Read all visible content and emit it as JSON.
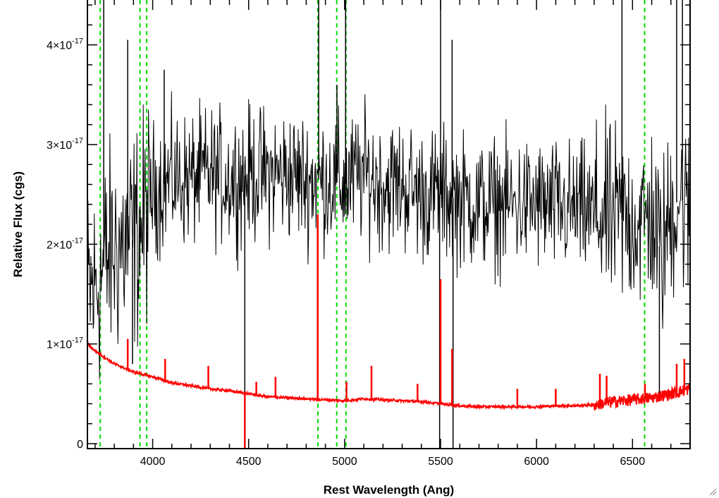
{
  "chart_data": {
    "type": "line",
    "xlabel": "Rest Wavelength (Ang)",
    "ylabel": "Relative Flux (cgs)",
    "xlim": [
      3660,
      6800
    ],
    "ylim": [
      -5e-19,
      4.45e-17
    ],
    "x_ticks": [
      {
        "value": 4000,
        "label": "4000"
      },
      {
        "value": 4500,
        "label": "4500"
      },
      {
        "value": 5000,
        "label": "5000"
      },
      {
        "value": 5500,
        "label": "5500"
      },
      {
        "value": 6000,
        "label": "6000"
      },
      {
        "value": 6500,
        "label": "6500"
      }
    ],
    "y_ticks": [
      {
        "value": 0,
        "mantissa": "0",
        "exponent": ""
      },
      {
        "value": 1e-17,
        "mantissa": "1×10",
        "exponent": "-17"
      },
      {
        "value": 2e-17,
        "mantissa": "2×10",
        "exponent": "-17"
      },
      {
        "value": 3e-17,
        "mantissa": "3×10",
        "exponent": "-17"
      },
      {
        "value": 4e-17,
        "mantissa": "4×10",
        "exponent": "-17"
      }
    ],
    "grid": false,
    "series": [
      {
        "color": "#000000",
        "style": "noisy-spectrum",
        "x": [
          3660,
          3700,
          3750,
          3800,
          3850,
          3900,
          3950,
          4000,
          4100,
          4200,
          4300,
          4400,
          4500,
          4600,
          4700,
          4800,
          4900,
          5000,
          5100,
          5200,
          5300,
          5400,
          5500,
          5600,
          5700,
          5800,
          5900,
          6000,
          6100,
          6200,
          6300,
          6400,
          6500,
          6550,
          6600,
          6650,
          6700,
          6750,
          6800
        ],
        "y": [
          1.5e-17,
          1.55e-17,
          1.8e-17,
          1.95e-17,
          2e-17,
          2.05e-17,
          2.2e-17,
          2.55e-17,
          2.65e-17,
          2.65e-17,
          2.7e-17,
          2.65e-17,
          2.7e-17,
          2.7e-17,
          2.7e-17,
          2.65e-17,
          2.65e-17,
          2.6e-17,
          2.7e-17,
          2.6e-17,
          2.6e-17,
          2.5e-17,
          2.5e-17,
          2.45e-17,
          2.4e-17,
          2.4e-17,
          2.4e-17,
          2.4e-17,
          2.35e-17,
          2.35e-17,
          2.3e-17,
          2.25e-17,
          2.25e-17,
          2.2e-17,
          2.3e-17,
          1.9e-17,
          2.3e-17,
          2.5e-17,
          2.2e-17
        ],
        "spikes": [
          {
            "x": 3745,
            "y": 4.45e-17
          },
          {
            "x": 3870,
            "y": 4.05e-17
          },
          {
            "x": 3895,
            "y": 8e-18
          },
          {
            "x": 4060,
            "y": 3.75e-17
          },
          {
            "x": 4480,
            "y": -5e-19
          },
          {
            "x": 4865,
            "y": 4.45e-17
          },
          {
            "x": 4960,
            "y": 3.6e-17
          },
          {
            "x": 5005,
            "y": 4.45e-17
          },
          {
            "x": 5495,
            "y": -5e-19
          },
          {
            "x": 5500,
            "y": 4.45e-17
          },
          {
            "x": 5560,
            "y": 4.05e-17
          },
          {
            "x": 5565,
            "y": -5e-19
          },
          {
            "x": 6445,
            "y": 4.45e-17
          },
          {
            "x": 6640,
            "y": 5e-18
          },
          {
            "x": 6730,
            "y": 4.45e-17
          },
          {
            "x": 6760,
            "y": 4.45e-17
          }
        ]
      },
      {
        "color": "#ff0000",
        "style": "model-spectrum",
        "x": [
          3660,
          3700,
          3800,
          3900,
          4000,
          4100,
          4200,
          4300,
          4400,
          4500,
          4600,
          4700,
          4800,
          4900,
          5000,
          5100,
          5200,
          5300,
          5400,
          5500,
          5600,
          5700,
          5800,
          5900,
          6000,
          6100,
          6200,
          6300,
          6400,
          6500,
          6600,
          6700,
          6800
        ],
        "y": [
          1e-17,
          9.3e-18,
          8e-18,
          7.2e-18,
          6.7e-18,
          6.1e-18,
          5.8e-18,
          5.5e-18,
          5.3e-18,
          5e-18,
          4.7e-18,
          4.6e-18,
          4.5e-18,
          4.4e-18,
          4.3e-18,
          4.5e-18,
          4.4e-18,
          4.3e-18,
          4.2e-18,
          4e-18,
          3.8e-18,
          3.7e-18,
          3.7e-18,
          3.7e-18,
          3.7e-18,
          3.8e-18,
          3.8e-18,
          3.9e-18,
          4.2e-18,
          4.4e-18,
          4.6e-18,
          5e-18,
          5.5e-18
        ],
        "lines": [
          {
            "x": 3870,
            "y": 1.05e-17
          },
          {
            "x": 4065,
            "y": 8.5e-18
          },
          {
            "x": 4290,
            "y": 7.8e-18
          },
          {
            "x": 4480,
            "y": -5e-19
          },
          {
            "x": 4540,
            "y": 6.2e-18
          },
          {
            "x": 4640,
            "y": 6.7e-18
          },
          {
            "x": 4860,
            "y": 2.3e-17
          },
          {
            "x": 5010,
            "y": 6.2e-18
          },
          {
            "x": 5140,
            "y": 7.8e-18
          },
          {
            "x": 5380,
            "y": 6e-18
          },
          {
            "x": 5500,
            "y": 1.65e-17
          },
          {
            "x": 5560,
            "y": 9.5e-18
          },
          {
            "x": 5900,
            "y": 5.5e-18
          },
          {
            "x": 6100,
            "y": 5.5e-18
          },
          {
            "x": 6330,
            "y": 7e-18
          },
          {
            "x": 6365,
            "y": 6.8e-18
          },
          {
            "x": 6565,
            "y": 6e-18
          },
          {
            "x": 6730,
            "y": 8e-18
          },
          {
            "x": 6770,
            "y": 8.5e-18
          }
        ]
      }
    ],
    "reference_lines": {
      "color": "#00dd00",
      "style": "dashed",
      "x": [
        3727,
        3934,
        3969,
        4861,
        4959,
        5007,
        6563
      ]
    }
  }
}
